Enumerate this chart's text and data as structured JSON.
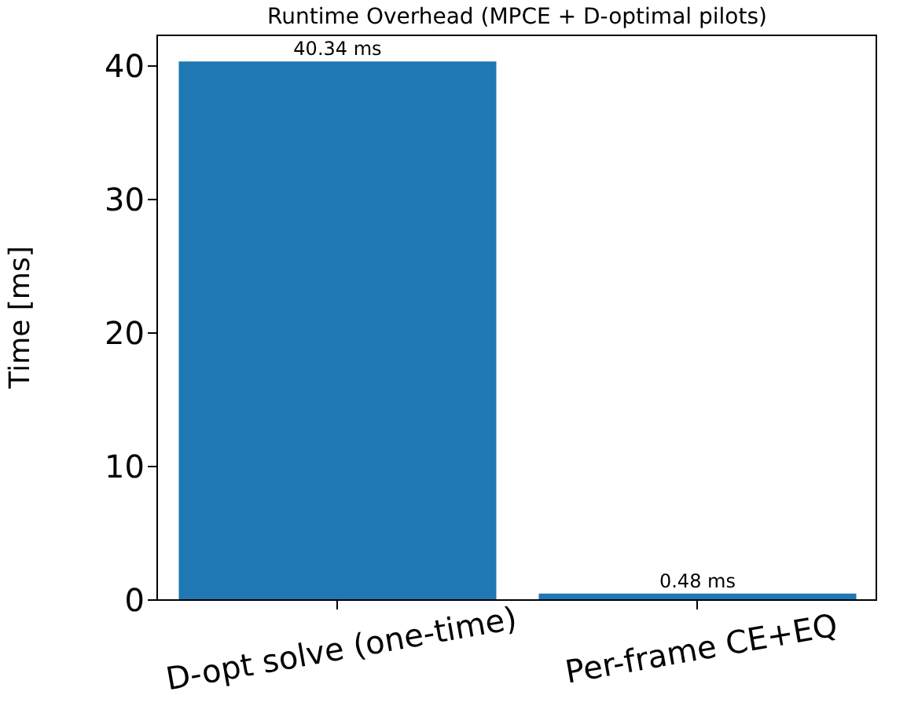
{
  "chart_data": {
    "type": "bar",
    "title": "Runtime Overhead (MPCE + D-optimal pilots)",
    "ylabel": "Time [ms]",
    "categories": [
      "D-opt solve (one-time)",
      "Per-frame CE+EQ"
    ],
    "values": [
      40.34,
      0.48
    ],
    "value_labels": [
      "40.34 ms",
      "0.48 ms"
    ],
    "color": "#1f77b4",
    "ylim": [
      0,
      42.36
    ],
    "yticks": [
      0,
      10,
      20,
      30,
      40
    ],
    "grid": false
  }
}
